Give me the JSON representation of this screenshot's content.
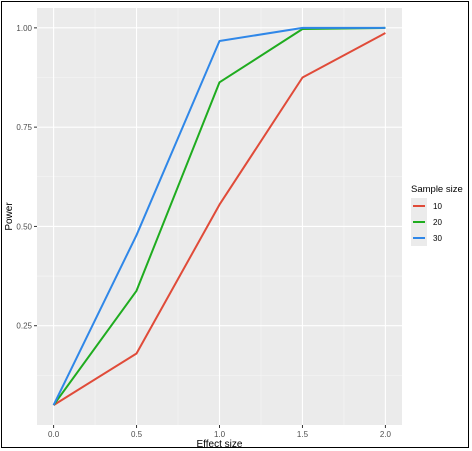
{
  "chart_data": {
    "type": "line",
    "title": "",
    "xlabel": "Effect size",
    "ylabel": "Power",
    "x": [
      0.0,
      0.5,
      1.0,
      1.5,
      2.0
    ],
    "x_ticks": [
      "0.0",
      "0.5",
      "1.0",
      "1.5",
      "2.0"
    ],
    "y_ticks": [
      "0.25",
      "0.50",
      "0.75",
      "1.00"
    ],
    "xlim": [
      -0.1,
      2.1
    ],
    "ylim": [
      0.0,
      1.05
    ],
    "grid": true,
    "legend": {
      "title": "Sample size",
      "position": "right"
    },
    "series": [
      {
        "name": "10",
        "color": "#e04b39",
        "values": [
          0.05,
          0.18,
          0.555,
          0.875,
          0.987
        ]
      },
      {
        "name": "20",
        "color": "#1fac1f",
        "values": [
          0.05,
          0.338,
          0.863,
          0.997,
          1.0
        ]
      },
      {
        "name": "30",
        "color": "#2f87e8",
        "values": [
          0.05,
          0.478,
          0.967,
          1.0,
          1.0
        ]
      }
    ]
  }
}
